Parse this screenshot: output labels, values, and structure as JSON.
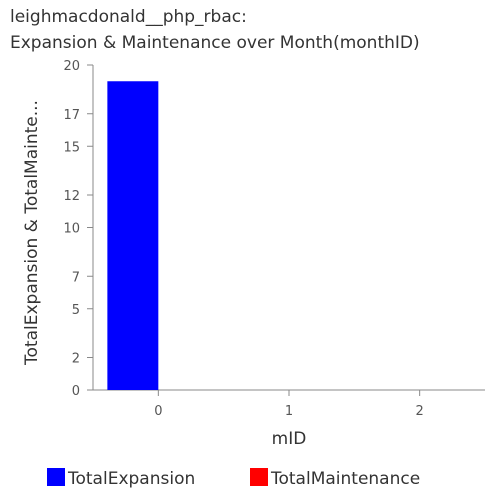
{
  "chart_data": {
    "type": "bar",
    "title_line1": "leighmacdonald__php_rbac:",
    "title_line2": "Expansion & Maintenance over Month(monthID)",
    "xlabel": "mID",
    "ylabel": "TotalExpansion & TotalMainte...",
    "categories": [
      "0",
      "1",
      "2"
    ],
    "ylim": [
      0,
      20
    ],
    "yticks": [
      0,
      2,
      5,
      7,
      10,
      12,
      15,
      17,
      20
    ],
    "series": [
      {
        "name": "TotalExpansion",
        "color": "#0000ff",
        "values": [
          19,
          0,
          0
        ]
      },
      {
        "name": "TotalMaintenance",
        "color": "#ff0000",
        "values": [
          0,
          0,
          0
        ]
      }
    ],
    "legend_position": "bottom",
    "grid": false
  }
}
